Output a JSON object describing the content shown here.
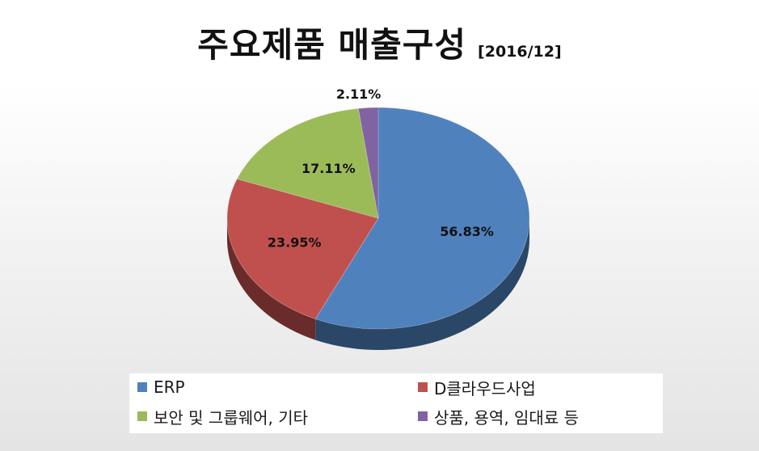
{
  "title": "주요제품 매출구성",
  "subtitle": "[2016/12]",
  "chart_data": {
    "type": "pie",
    "title": "주요제품 매출구성",
    "subtitle": "[2016/12]",
    "categories": [
      "ERP",
      "D클라우드사업",
      "보안 및 그룹웨어, 기타",
      "상품, 용역, 임대료 등"
    ],
    "values": [
      56.83,
      23.95,
      17.11,
      2.11
    ],
    "data_labels": [
      "56.83%",
      "23.95%",
      "17.11%",
      "2.11%"
    ],
    "colors": [
      "#4f81bd",
      "#c0504d",
      "#9bbb59",
      "#8064a2"
    ],
    "style": "3d-pie",
    "legend_position": "bottom"
  },
  "legend": {
    "items": [
      {
        "label": "ERP",
        "color": "#4f81bd"
      },
      {
        "label": "D클라우드사업",
        "color": "#c0504d"
      },
      {
        "label": "보안 및 그룹웨어, 기타",
        "color": "#9bbb59"
      },
      {
        "label": "상품, 용역, 임대료 등",
        "color": "#8064a2"
      }
    ]
  }
}
